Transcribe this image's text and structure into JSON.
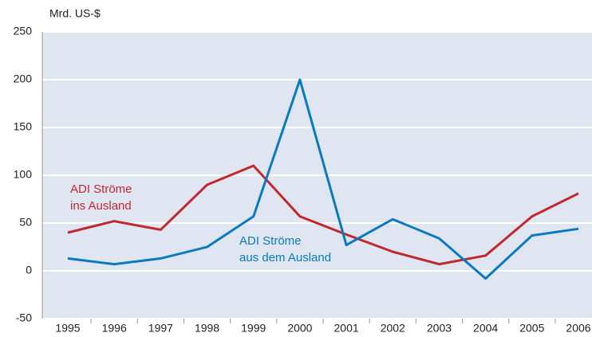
{
  "chart_data": {
    "type": "line",
    "y_label": "Mrd. US-$",
    "categories": [
      "1995",
      "1996",
      "1997",
      "1998",
      "1999",
      "2000",
      "2001",
      "2002",
      "2003",
      "2004",
      "2005",
      "2006"
    ],
    "series": [
      {
        "name": "ADI Ströme\nins Ausland",
        "color": "#c0282e",
        "values": [
          40,
          52,
          43,
          90,
          110,
          57,
          38,
          20,
          7,
          16,
          57,
          81
        ]
      },
      {
        "name": "ADI Ströme\naus dem Ausland",
        "color": "#0a7abf",
        "values": [
          13,
          7,
          13,
          25,
          57,
          200,
          27,
          54,
          34,
          -8,
          37,
          44
        ]
      }
    ],
    "ylim": [
      -50,
      250
    ],
    "yticks": [
      -50,
      0,
      50,
      100,
      150,
      200,
      250
    ],
    "grid": true
  }
}
